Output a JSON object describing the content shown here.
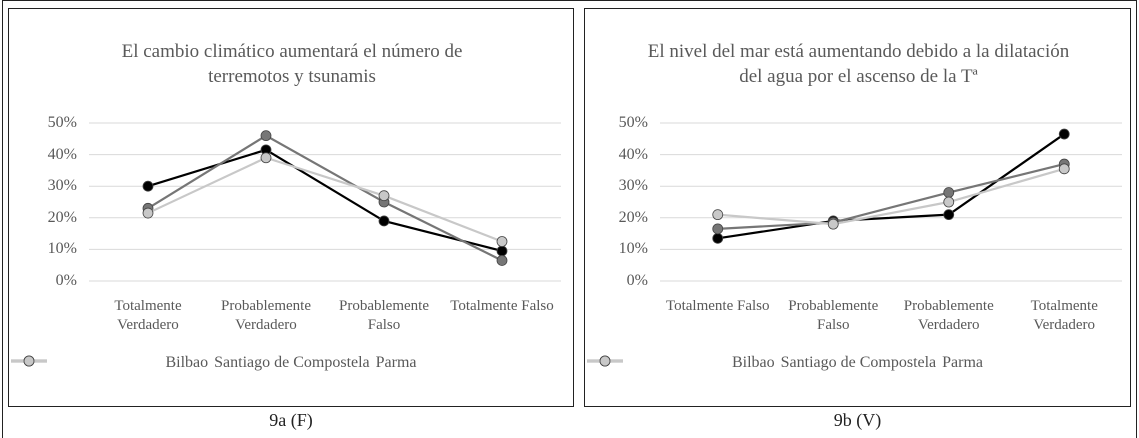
{
  "chart_data": [
    {
      "type": "line",
      "title": "El cambio climático aumentará el número de terremotos y tsunamis",
      "caption": "9a (F)",
      "categories": [
        "Totalmente Verdadero",
        "Probablemente Verdadero",
        "Probablemente Falso",
        "Totalmente Falso"
      ],
      "series": [
        {
          "name": "Bilbao",
          "color": "#000000",
          "values": [
            30,
            41.5,
            19,
            9.5
          ]
        },
        {
          "name": "Santiago de Compostela",
          "color": "#767676",
          "values": [
            23,
            46,
            25,
            6.5
          ]
        },
        {
          "name": "Parma",
          "color": "#c8c8c8",
          "values": [
            21.5,
            39,
            27,
            12.5
          ]
        }
      ],
      "ylim": [
        0,
        50
      ],
      "yticks": [
        {
          "value": 0,
          "label": "0%"
        },
        {
          "value": 10,
          "label": "10%"
        },
        {
          "value": 20,
          "label": "20%"
        },
        {
          "value": 30,
          "label": "30%"
        },
        {
          "value": 40,
          "label": "40%"
        },
        {
          "value": 50,
          "label": "50%"
        }
      ],
      "grid": true,
      "legend": "bottom"
    },
    {
      "type": "line",
      "title": "El nivel del mar está aumentando debido a la dilatación del agua por el ascenso de la Tª",
      "caption": "9b (V)",
      "categories": [
        "Totalmente Falso",
        "Probablemente Falso",
        "Probablemente Verdadero",
        "Totalmente Verdadero"
      ],
      "series": [
        {
          "name": "Bilbao",
          "color": "#000000",
          "values": [
            13.5,
            19,
            21,
            46.5
          ]
        },
        {
          "name": "Santiago de Compostela",
          "color": "#767676",
          "values": [
            16.5,
            18.5,
            28,
            37
          ]
        },
        {
          "name": "Parma",
          "color": "#c8c8c8",
          "values": [
            21,
            18,
            25,
            35.5
          ]
        }
      ],
      "ylim": [
        0,
        50
      ],
      "yticks": [
        {
          "value": 0,
          "label": "0%"
        },
        {
          "value": 10,
          "label": "10%"
        },
        {
          "value": 20,
          "label": "20%"
        },
        {
          "value": 30,
          "label": "30%"
        },
        {
          "value": 40,
          "label": "40%"
        },
        {
          "value": 50,
          "label": "50%"
        }
      ],
      "grid": true,
      "legend": "bottom"
    }
  ]
}
